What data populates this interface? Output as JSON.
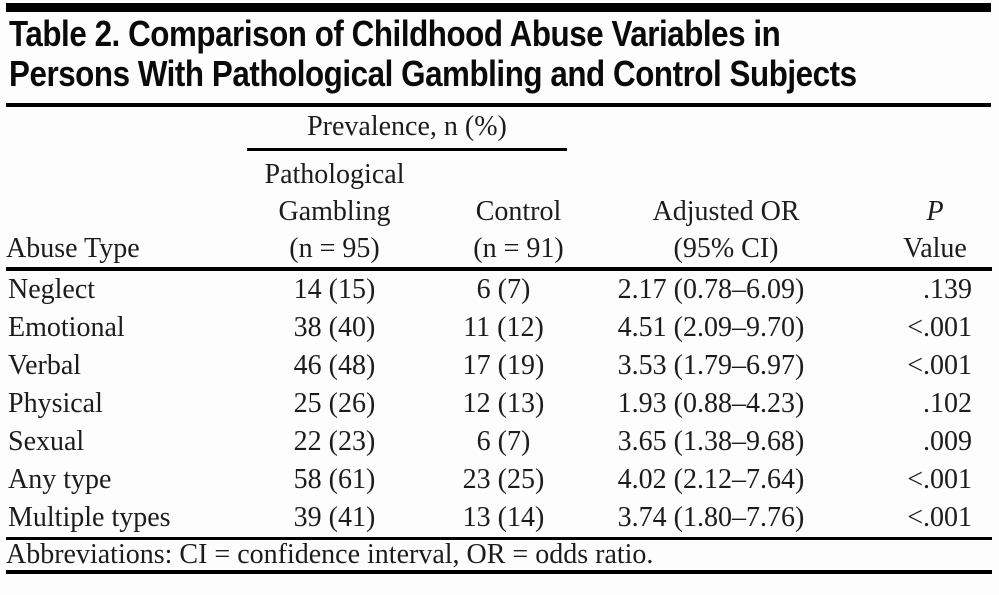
{
  "table": {
    "title_lines": [
      "Table 2. Comparison of Childhood Abuse Variables in",
      "Persons With Pathological Gambling and Control Subjects"
    ],
    "spanner_label": "Prevalence, n (%)",
    "columns": {
      "abuse_type": "Abuse Type",
      "pg_lines": [
        "Pathological",
        "Gambling",
        "(n = 95)"
      ],
      "control_lines": [
        "Control",
        "(n = 91)"
      ],
      "or_lines": [
        "Adjusted OR",
        "(95% CI)"
      ],
      "p_lines": [
        "P",
        "Value"
      ]
    },
    "rows": [
      {
        "abuse_type": "Neglect",
        "pg": "14 (15)",
        "control": "6 (7)",
        "or_ci": "2.17 (0.78–6.09)",
        "p": ".139"
      },
      {
        "abuse_type": "Emotional",
        "pg": "38 (40)",
        "control": "11 (12)",
        "or_ci": "4.51 (2.09–9.70)",
        "p": "<.001"
      },
      {
        "abuse_type": "Verbal",
        "pg": "46 (48)",
        "control": "17 (19)",
        "or_ci": "3.53 (1.79–6.97)",
        "p": "<.001"
      },
      {
        "abuse_type": "Physical",
        "pg": "25 (26)",
        "control": "12 (13)",
        "or_ci": "1.93 (0.88–4.23)",
        "p": ".102"
      },
      {
        "abuse_type": "Sexual",
        "pg": "22 (23)",
        "control": "6 (7)",
        "or_ci": "3.65 (1.38–9.68)",
        "p": ".009"
      },
      {
        "abuse_type": "Any type",
        "pg": "58 (61)",
        "control": "23 (25)",
        "or_ci": "4.02 (2.12–7.64)",
        "p": "<.001"
      },
      {
        "abuse_type": "Multiple types",
        "pg": "39 (41)",
        "control": "13 (14)",
        "or_ci": "3.74 (1.80–7.76)",
        "p": "<.001"
      }
    ],
    "footnote": "Abbreviations: CI = confidence interval, OR = odds ratio.",
    "colors": {
      "rule": "#000000",
      "text": "#1c1c1c",
      "title": "#0a0a0a",
      "background": "#fdfdfd"
    }
  }
}
